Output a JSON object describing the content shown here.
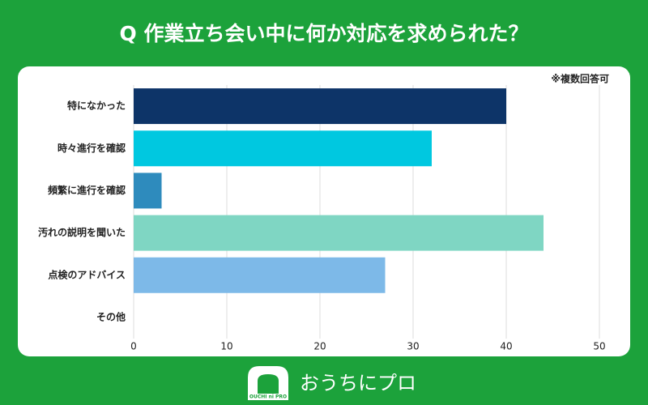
{
  "chart_data": {
    "type": "hbar",
    "title": "Q 作業立ち会い中に何か対応を求められた？",
    "note": "※複数回答可",
    "categories": [
      "特になかった",
      "時々進行を確認",
      "頻繁に進行を確認",
      "汚れの説明を聞いた",
      "点検のアドバイス",
      "その他"
    ],
    "values": [
      40,
      32,
      3,
      44,
      27,
      0
    ],
    "colors": [
      "#0d3468",
      "#00c8e0",
      "#2e8bbd",
      "#7fd6c3",
      "#7db9e8"
    ],
    "xlim": [
      0,
      50
    ],
    "xticks": [
      0,
      10,
      20,
      30,
      40,
      50
    ],
    "grid": true
  },
  "logo": {
    "mark": "OUCHI ni PRO",
    "name": "おうちにプロ"
  }
}
